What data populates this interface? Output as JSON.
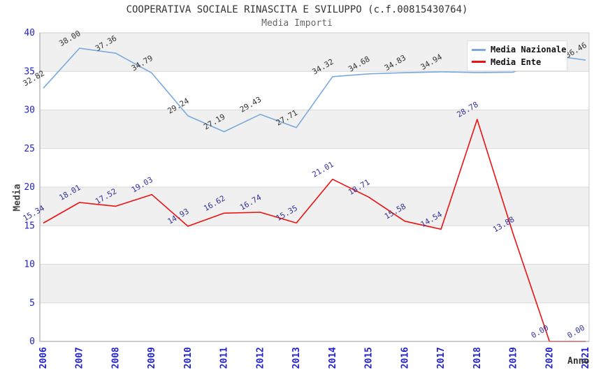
{
  "header": {
    "title": "COOPERATIVA SOCIALE RINASCITA E SVILUPPO (c.f.00815430764)",
    "subtitle": "Media Importi"
  },
  "chart_data": {
    "type": "line",
    "title": "COOPERATIVA SOCIALE RINASCITA E SVILUPPO (c.f.00815430764)",
    "subtitle": "Media Importi",
    "xlabel": "Anno",
    "ylabel": "Media",
    "ylim": [
      0,
      40
    ],
    "ytick_step": 5,
    "grid": "horizontal-bands",
    "legend_position": "top-right",
    "categories": [
      "2006",
      "2007",
      "2008",
      "2009",
      "2010",
      "2011",
      "2012",
      "2013",
      "2014",
      "2015",
      "2016",
      "2017",
      "2018",
      "2019",
      "2020",
      "2021"
    ],
    "series": [
      {
        "name": "Media Nazionale",
        "color": "#7aa9dc",
        "label_color": "#333333",
        "values": [
          32.82,
          38.0,
          37.36,
          34.79,
          29.24,
          27.19,
          29.43,
          27.71,
          34.32,
          34.68,
          34.83,
          34.94,
          34.85,
          34.9,
          37.1,
          36.46
        ],
        "labels": [
          "32.82",
          "38.00",
          "37.36",
          "34.79",
          "29.24",
          "27.19",
          "29.43",
          "27.71",
          "34.32",
          "34.68",
          "34.83",
          "34.94",
          null,
          null,
          null,
          "36.46"
        ]
      },
      {
        "name": "Media Ente",
        "color": "#ee1111",
        "label_color": "#333399",
        "values": [
          15.34,
          18.01,
          17.52,
          19.03,
          14.93,
          16.62,
          16.74,
          15.35,
          21.01,
          18.71,
          15.58,
          14.54,
          28.78,
          13.88,
          0.0,
          0.0
        ],
        "labels": [
          "15.34",
          "18.01",
          "17.52",
          "19.03",
          "14.93",
          "16.62",
          "16.74",
          "15.35",
          "21.01",
          "18.71",
          "15.58",
          "14.54",
          "28.78",
          "13.88",
          "0.00",
          "0.00"
        ]
      }
    ],
    "styles": {
      "band_color": "#f0f0f0",
      "grid_color": "#d9d9d9",
      "border_color": "#cccccc",
      "axis_color": "#999999",
      "tick_color": "#2222cc"
    }
  }
}
